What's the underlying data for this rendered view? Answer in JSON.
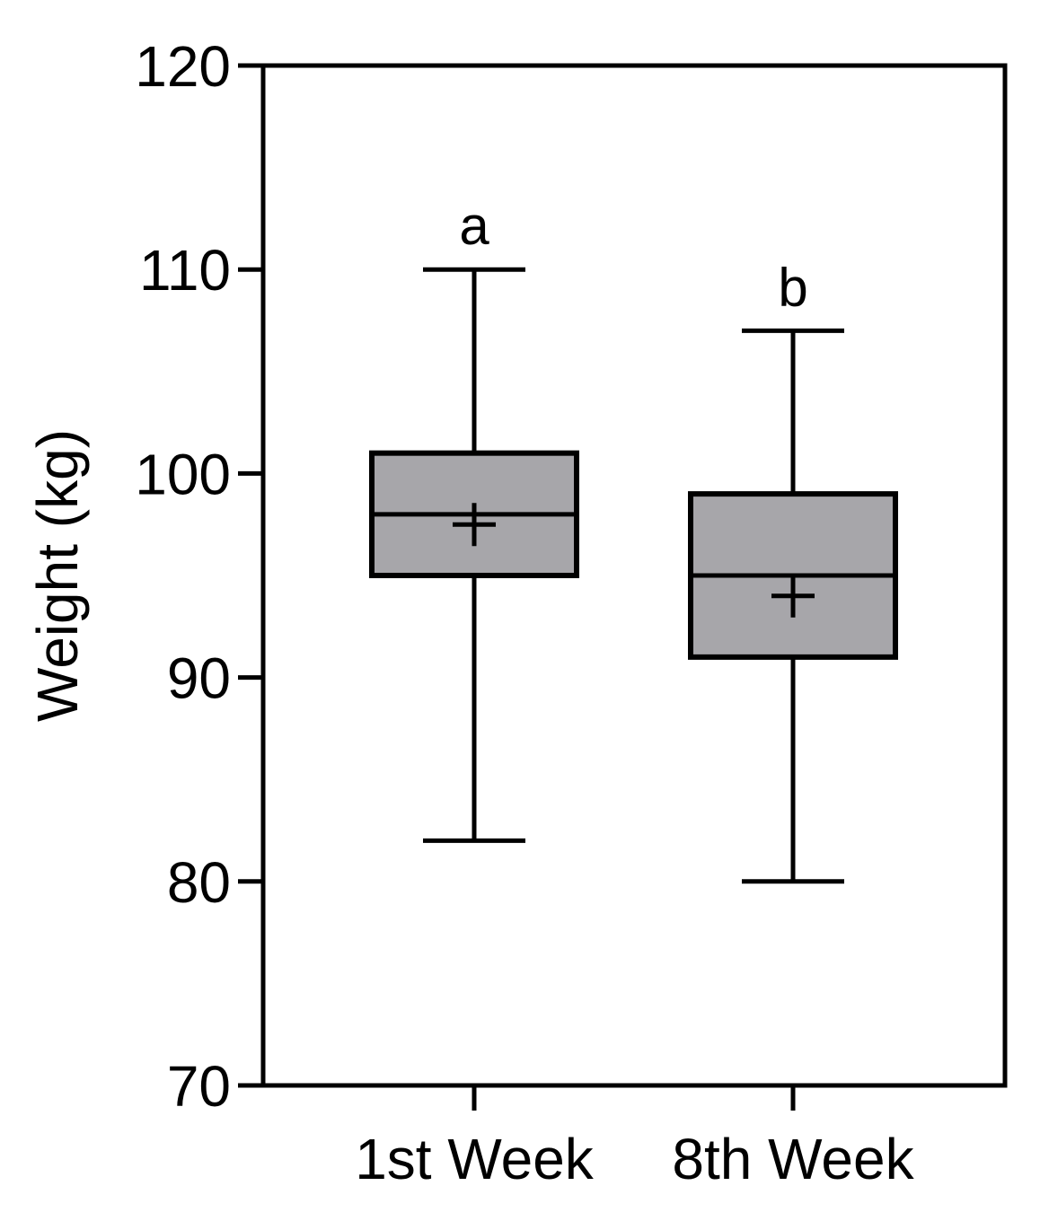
{
  "chart_data": {
    "type": "box",
    "ylabel": "Weight (kg)",
    "xlabel": "",
    "ylim": [
      70,
      120
    ],
    "yticks": [
      70,
      80,
      90,
      100,
      110,
      120
    ],
    "grid": false,
    "legend": "none",
    "box_color": "#a7a6aa",
    "line_color": "#000000",
    "categories": [
      "1st Week",
      "8th Week"
    ],
    "boxes": [
      {
        "category": "1st Week",
        "min": 82,
        "q1": 95,
        "median": 98,
        "q3": 101,
        "max": 110,
        "mean": 97.5,
        "significance": "a"
      },
      {
        "category": "8th Week",
        "min": 80,
        "q1": 91,
        "median": 95,
        "q3": 99,
        "max": 107,
        "mean": 94,
        "significance": "b"
      }
    ]
  }
}
